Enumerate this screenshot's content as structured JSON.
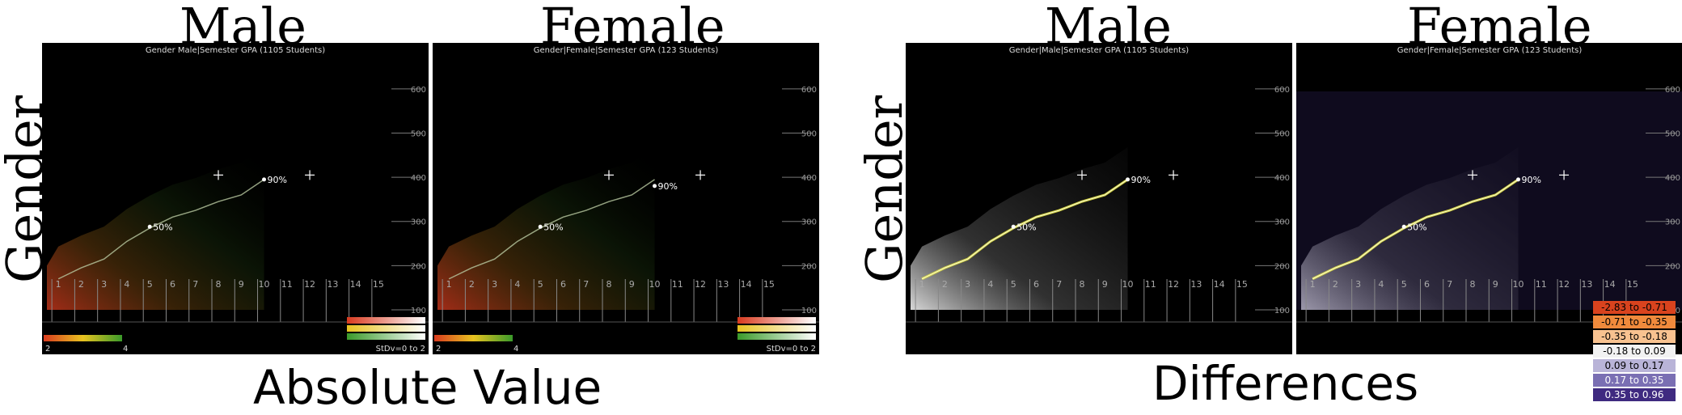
{
  "headers": {
    "male_1": "Male",
    "female_1": "Female",
    "male_2": "Male",
    "female_2": "Female"
  },
  "row_label": "Gender",
  "footers": {
    "left": "Absolute Value",
    "right": "Differences"
  },
  "panels": [
    {
      "title": "Gender Male|Semester GPA (1105 Students)",
      "mode": "absolute",
      "p90_label": "90%"
    },
    {
      "title": "Gender|Female|Semester GPA (123 Students)",
      "mode": "absolute",
      "p90_label": "90%"
    },
    {
      "title": "Gender|Male|Semester GPA (1105 Students)",
      "mode": "difference",
      "p90_label": "90%"
    },
    {
      "title": "Gender|Female|Semester GPA (123 Students)",
      "mode": "difference",
      "p90_label": "90%"
    }
  ],
  "colors": {
    "absolute_line": "#b8c8a0",
    "difference_line": "#e6e640",
    "high": "#3a9a2a",
    "low": "#d93a1f"
  },
  "gpa_legend": {
    "min": "2",
    "max": "4"
  },
  "stdv_label": "StDv=0 to 2",
  "diff_legend": [
    {
      "label": "-2.83 to -0.71",
      "color": "#d9431e"
    },
    {
      "label": "-0.71 to -0.35",
      "color": "#f08a3c"
    },
    {
      "label": "-0.35 to -0.18",
      "color": "#f8c290"
    },
    {
      "label": "-0.18 to 0.09",
      "color": "#f2f2f2"
    },
    {
      "label": "0.09 to 0.17",
      "color": "#b9b4d8"
    },
    {
      "label": "0.17 to 0.35",
      "color": "#7a6fb3"
    },
    {
      "label": "0.35 to 0.96",
      "color": "#3f2a80"
    }
  ],
  "chart_data": {
    "type": "line",
    "xlabel": "",
    "ylabel": "",
    "x_ticks": [
      "1",
      "2",
      "3",
      "4",
      "5",
      "6",
      "7",
      "8",
      "9",
      "10",
      "11",
      "12",
      "13",
      "14",
      "15"
    ],
    "y_ticks": [
      "100",
      "200",
      "300",
      "400",
      "500",
      "600"
    ],
    "xlim": [
      1,
      15
    ],
    "ylim": [
      100,
      640
    ],
    "series": [
      {
        "x": [
          1,
          2,
          3,
          4,
          5,
          6,
          7,
          8,
          9,
          10
        ],
        "y": [
          170,
          195,
          215,
          255,
          285,
          310,
          325,
          345,
          360,
          395
        ]
      }
    ],
    "percentile_markers": [
      {
        "label": "50%",
        "x": 5,
        "y": 288
      },
      {
        "label": "90%",
        "x": 10,
        "y": 395
      }
    ],
    "crosshairs": [
      {
        "x": 8,
        "y": 405
      },
      {
        "x": 12,
        "y": 405
      }
    ]
  }
}
